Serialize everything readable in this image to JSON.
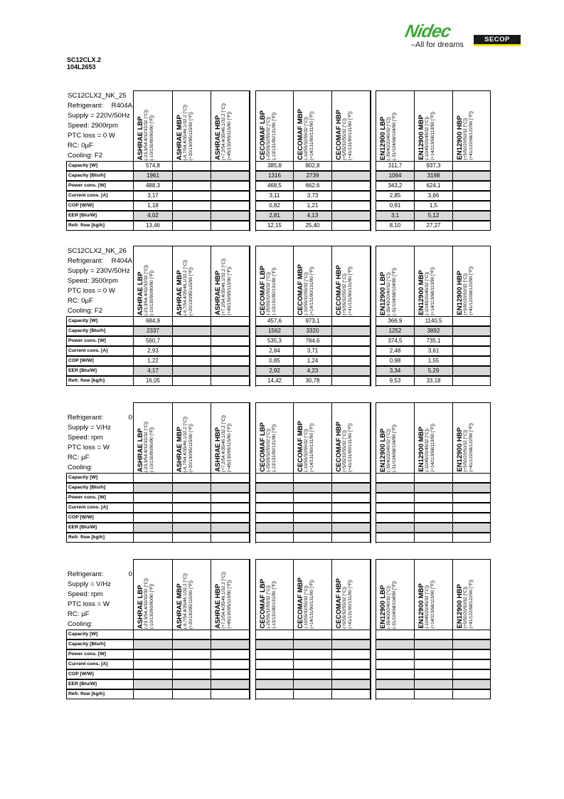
{
  "logo": {
    "brand": "Nidec",
    "tagline": "All for dreams",
    "sub_brand": "SECOP",
    "colors": {
      "green": "#3aa935",
      "yellow": "#f2e500"
    }
  },
  "model": {
    "name": "SC12CLX.2",
    "code": "104L2653"
  },
  "columns": [
    {
      "title": "ASHRAE LBP",
      "c": "(-23,3/54,4/32/32/32 [°C])",
      "f": "(-10/130/90/90/90 [°F])"
    },
    {
      "title": "ASHRAE MBP",
      "c": "(-6,7/54,4/35/46,1/32,2 [°C])",
      "f": "(+20/130/95/115/90 [°F])"
    },
    {
      "title": "ASHRAE HBP",
      "c": "(+7,2/54,4/35/46,1/32,2 [°C])",
      "f": "(+45/130/95/115/90 [°F])"
    },
    {
      "title": "CECOMAF LBP",
      "c": "(-25/55/32/55/32 [°C])",
      "f": "(-13/131/90/131/90 [°F])"
    },
    {
      "title": "CECOMAF MBP",
      "c": "(-10/55/32/55/32 [°C])",
      "f": "(+14/131/90/131/90 [°F])"
    },
    {
      "title": "CECOMAF HBP",
      "c": "(+5/55/32/55/32 [°C])",
      "f": "(+41/131/90/131/90 [°F])"
    },
    {
      "title": "EN12900 LBP",
      "c": "(-35/40/20/40/32 [°C])",
      "f": "(-31/104/68/104/90 [°F])"
    },
    {
      "title": "EN12900 MBP",
      "c": "(-10/45/20/45/32 [°C])",
      "f": "(+14/113/68/113/90 [°F])"
    },
    {
      "title": "EN12900 HBP",
      "c": "(+5/50/20/50/32 [°C])",
      "f": "(+41/122/68/122/90 [°F])"
    }
  ],
  "row_labels": [
    "Capacity [W]",
    "Capacity [Btu/h]",
    "Power cons. [W]",
    "Current cons. [A]",
    "COP [W/W]",
    "EER [Btu/W]",
    "Refr. flow [kg/h]"
  ],
  "shaded_rows": [
    1,
    5
  ],
  "tables": [
    {
      "info": [
        "SC12CLX2_NK_25",
        [
          "Refrigerant:",
          "R404A"
        ],
        "Supply = 220V/50Hz",
        "Speed: 2900rpm",
        "PTC loss = 0 W",
        "RC: 0µF",
        "Cooling: F2"
      ],
      "values": [
        [
          "574,8",
          "",
          "",
          "385,8",
          "802,8",
          "",
          "311,7",
          "937,3",
          ""
        ],
        [
          "1961",
          "",
          "",
          "1316",
          "2739",
          "",
          "1064",
          "3198",
          ""
        ],
        [
          "488,3",
          "",
          "",
          "468,5",
          "662,6",
          "",
          "343,2",
          "624,1",
          ""
        ],
        [
          "3,17",
          "",
          "",
          "3,11",
          "3,73",
          "",
          "2,85",
          "3,66",
          ""
        ],
        [
          "1,18",
          "",
          "",
          "0,82",
          "1,21",
          "",
          "0,91",
          "1,5",
          ""
        ],
        [
          "4,02",
          "",
          "",
          "2,81",
          "4,13",
          "",
          "3,1",
          "5,12",
          ""
        ],
        [
          "13,46",
          "",
          "",
          "12,15",
          "25,40",
          "",
          "8,10",
          "27,27",
          ""
        ]
      ]
    },
    {
      "info": [
        "SC12CLX2_NK_26",
        [
          "Refrigerant:",
          "R404A"
        ],
        "Supply = 230V/50Hz",
        "Speed: 3500rpm",
        "PTC loss = 0 W",
        "RC: 0µF",
        "Cooling: F2"
      ],
      "values": [
        [
          "684,9",
          "",
          "",
          "457,6",
          "973,1",
          "",
          "366,9",
          "1140,5",
          ""
        ],
        [
          "2337",
          "",
          "",
          "1562",
          "3320",
          "",
          "1252",
          "3892",
          ""
        ],
        [
          "560,7",
          "",
          "",
          "535,3",
          "784,6",
          "",
          "374,5",
          "735,1",
          ""
        ],
        [
          "2,93",
          "",
          "",
          "2,84",
          "3,71",
          "",
          "2,48",
          "3,61",
          ""
        ],
        [
          "1,22",
          "",
          "",
          "0,85",
          "1,24",
          "",
          "0,98",
          "1,55",
          ""
        ],
        [
          "4,17",
          "",
          "",
          "2,92",
          "4,23",
          "",
          "3,34",
          "5,29",
          ""
        ],
        [
          "16,05",
          "",
          "",
          "14,42",
          "30,78",
          "",
          "9,53",
          "33,18",
          ""
        ]
      ]
    },
    {
      "info": [
        "",
        [
          "Refrigerant:",
          "0"
        ],
        "Supply = V/Hz",
        "Speed: rpm",
        "PTC loss =  W",
        "RC: µF",
        "Cooling:"
      ],
      "values": []
    },
    {
      "info": [
        "",
        [
          "Refrigerant:",
          "0"
        ],
        "Supply = V/Hz",
        "Speed: rpm",
        "PTC loss =  W",
        "RC: µF",
        "Cooling:"
      ],
      "values": []
    }
  ]
}
